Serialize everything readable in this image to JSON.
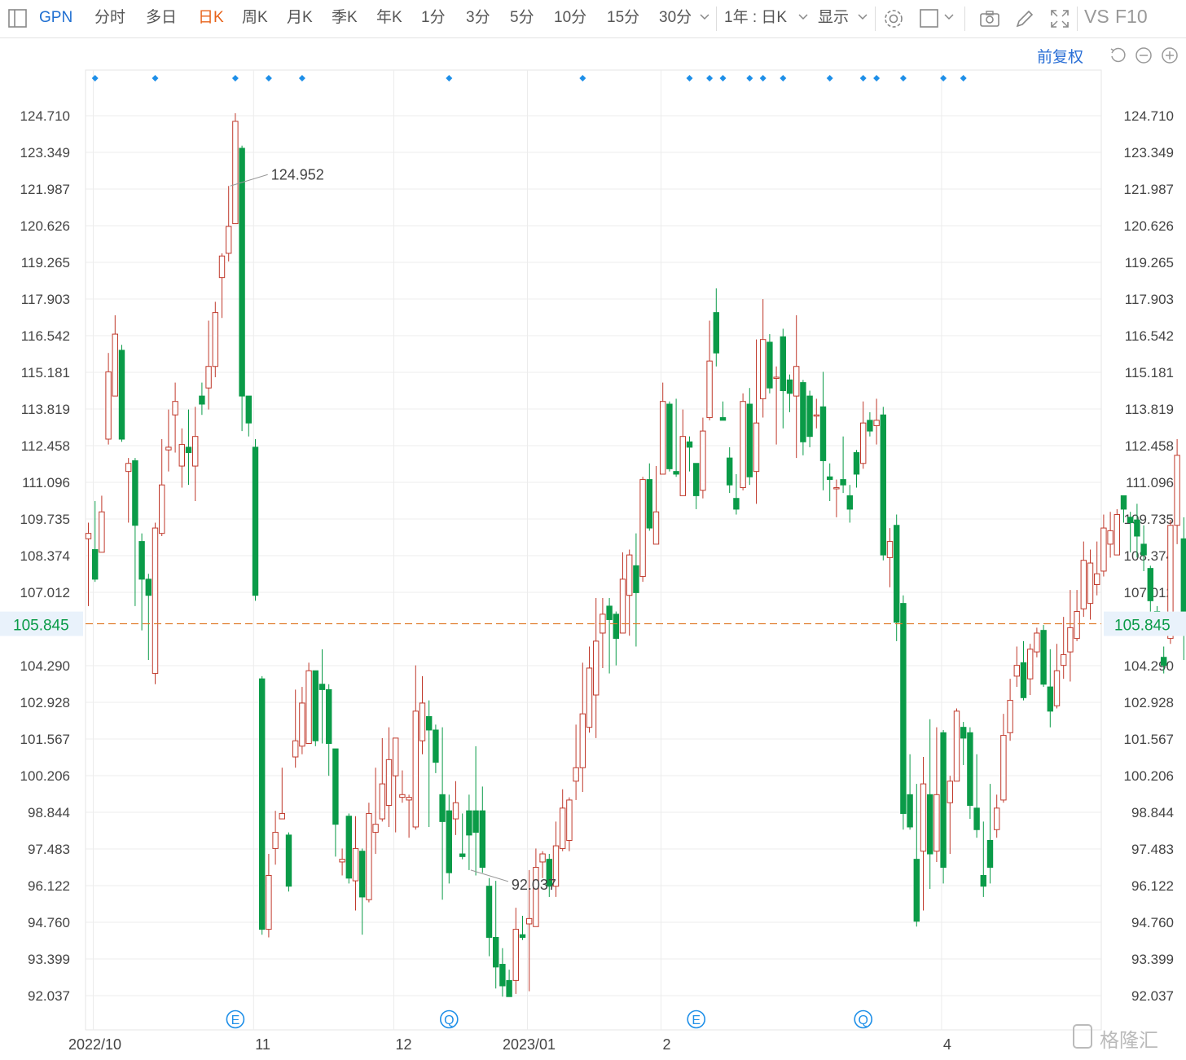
{
  "toolbar": {
    "symbol": "GPN",
    "tabs": [
      "分时",
      "多日",
      "日K",
      "周K",
      "月K",
      "季K",
      "年K",
      "1分",
      "3分",
      "5分",
      "10分",
      "15分",
      "30分"
    ],
    "active_tab": "日K",
    "range_select": "1年 : 日K",
    "display_select": "显示",
    "vs_label": "VS",
    "f10_label": "F10"
  },
  "fuquan_label": "前复权",
  "watermark": "格隆汇",
  "colors": {
    "up": "#c0392b",
    "down": "#0a9b48",
    "guide": "#e07b2a",
    "grid": "#ececec",
    "marker": "#1e8fe8"
  },
  "chart_data": {
    "type": "candlestick",
    "ylim": [
      91.2,
      126.0
    ],
    "y_ticks": [
      124.71,
      123.349,
      121.987,
      120.626,
      119.265,
      117.903,
      116.542,
      115.181,
      113.819,
      112.458,
      111.096,
      109.735,
      108.374,
      107.012,
      104.29,
      102.928,
      101.567,
      100.206,
      98.844,
      97.483,
      96.122,
      94.76,
      93.399,
      92.037
    ],
    "y_tick_labels": [
      "124.710",
      "123.349",
      "121.987",
      "120.626",
      "119.265",
      "117.903",
      "116.542",
      "115.181",
      "113.819",
      "112.458",
      "111.096",
      "109.735",
      "108.374",
      "107.012",
      "104.290",
      "102.928",
      "101.567",
      "100.206",
      "98.844",
      "97.483",
      "96.122",
      "94.760",
      "93.399",
      "92.037"
    ],
    "current_price": 105.845,
    "current_price_label": "105.845",
    "x_labels": [
      "2022/10",
      "11",
      "12",
      "2023/01",
      "2",
      "4"
    ],
    "x_label_index": [
      0,
      24,
      45,
      65,
      85,
      127
    ],
    "max_label": "124.952",
    "max_index": 21,
    "min_label": "92.037",
    "min_index": 57,
    "event_markers": [
      {
        "label": "E",
        "index": 22
      },
      {
        "label": "Q",
        "index": 54
      },
      {
        "label": "E",
        "index": 91
      },
      {
        "label": "Q",
        "index": 116
      }
    ],
    "dividend_marker_index": [
      1,
      10,
      22,
      27,
      32,
      54,
      74,
      90,
      93,
      95,
      99,
      101,
      104,
      111,
      116,
      118,
      122,
      128,
      131
    ],
    "candles": [
      [
        109.0,
        109.2,
        106.5,
        109.6
      ],
      [
        108.6,
        107.5,
        107.4,
        110.4
      ],
      [
        108.5,
        110.0,
        108.5,
        110.6
      ],
      [
        112.7,
        115.2,
        112.5,
        115.9
      ],
      [
        114.3,
        116.6,
        114.3,
        117.3
      ],
      [
        116.0,
        112.7,
        112.6,
        116.2
      ],
      [
        111.5,
        111.8,
        109.6,
        112.0
      ],
      [
        111.9,
        109.5,
        106.5,
        112.0
      ],
      [
        108.9,
        107.5,
        105.6,
        109.2
      ],
      [
        107.5,
        106.9,
        104.5,
        107.7
      ],
      [
        104.0,
        109.4,
        103.6,
        109.6
      ],
      [
        109.2,
        111.0,
        109.1,
        112.7
      ],
      [
        112.3,
        112.4,
        111.5,
        113.8
      ],
      [
        113.6,
        114.1,
        112.2,
        114.8
      ],
      [
        111.7,
        112.5,
        110.9,
        113.1
      ],
      [
        112.4,
        112.2,
        111.0,
        113.8
      ],
      [
        111.7,
        112.8,
        110.4,
        113.9
      ],
      [
        114.3,
        114.0,
        113.6,
        114.8
      ],
      [
        114.6,
        115.4,
        113.8,
        117.1
      ],
      [
        115.4,
        117.4,
        115.0,
        117.8
      ],
      [
        118.7,
        119.5,
        117.2,
        119.6
      ],
      [
        119.6,
        120.6,
        119.3,
        122.1
      ],
      [
        120.7,
        124.5,
        120.7,
        124.8
      ],
      [
        123.5,
        114.3,
        113.0,
        123.6
      ],
      [
        114.3,
        113.3,
        112.8,
        114.3
      ],
      [
        112.4,
        106.9,
        106.7,
        112.7
      ],
      [
        103.8,
        94.5,
        94.3,
        103.9
      ],
      [
        94.5,
        96.5,
        94.2,
        97.3
      ],
      [
        97.5,
        98.1,
        96.9,
        98.9
      ],
      [
        98.6,
        98.8,
        98.6,
        100.5
      ],
      [
        98.0,
        96.1,
        95.9,
        98.1
      ],
      [
        100.9,
        101.5,
        100.5,
        103.4
      ],
      [
        101.3,
        102.9,
        101.0,
        103.5
      ],
      [
        101.4,
        104.1,
        101.4,
        104.4
      ],
      [
        104.1,
        101.5,
        101.3,
        104.1
      ],
      [
        103.6,
        103.4,
        101.4,
        104.9
      ],
      [
        103.4,
        101.4,
        100.2,
        103.6
      ],
      [
        101.2,
        98.4,
        97.2,
        101.2
      ],
      [
        97.0,
        97.1,
        96.5,
        97.5
      ],
      [
        98.7,
        96.4,
        96.2,
        98.8
      ],
      [
        96.3,
        97.5,
        95.2,
        98.7
      ],
      [
        97.4,
        95.7,
        94.3,
        97.5
      ],
      [
        95.6,
        98.8,
        95.5,
        99.2
      ],
      [
        98.1,
        98.4,
        97.3,
        100.5
      ],
      [
        98.6,
        99.9,
        98.5,
        101.6
      ],
      [
        99.1,
        100.8,
        98.3,
        102.0
      ],
      [
        100.2,
        101.6,
        98.1,
        101.6
      ],
      [
        99.4,
        99.5,
        99.2,
        100.4
      ],
      [
        99.3,
        99.4,
        97.9,
        99.5
      ],
      [
        98.3,
        102.6,
        98.2,
        104.3
      ],
      [
        101.5,
        102.9,
        101.0,
        103.9
      ],
      [
        102.4,
        101.9,
        98.3,
        103.0
      ],
      [
        101.9,
        100.7,
        100.3,
        102.1
      ],
      [
        99.5,
        98.5,
        95.6,
        102.0
      ],
      [
        98.9,
        96.6,
        96.2,
        99.5
      ],
      [
        98.6,
        99.2,
        98.0,
        100.0
      ],
      [
        97.3,
        97.2,
        97.1,
        98.8
      ],
      [
        98.9,
        98.0,
        96.7,
        99.5
      ],
      [
        98.9,
        98.1,
        96.5,
        101.3
      ],
      [
        98.9,
        96.8,
        96.6,
        99.8
      ],
      [
        96.1,
        94.2,
        93.5,
        96.4
      ],
      [
        94.2,
        93.1,
        92.3,
        96.3
      ],
      [
        93.2,
        92.4,
        92.0,
        93.8
      ],
      [
        92.6,
        92.0,
        92.0,
        93.0
      ],
      [
        92.6,
        94.5,
        92.1,
        95.3
      ],
      [
        94.3,
        94.2,
        94.1,
        95.0
      ],
      [
        94.7,
        94.9,
        92.2,
        96.7
      ],
      [
        94.6,
        96.8,
        94.6,
        97.5
      ],
      [
        97.0,
        97.3,
        96.4,
        97.4
      ],
      [
        97.1,
        96.1,
        95.7,
        97.3
      ],
      [
        96.1,
        97.6,
        95.7,
        98.5
      ],
      [
        97.5,
        99.0,
        97.4,
        99.7
      ],
      [
        97.8,
        99.3,
        97.4,
        99.4
      ],
      [
        100.0,
        100.5,
        99.3,
        102.1
      ],
      [
        100.5,
        102.5,
        99.6,
        104.4
      ],
      [
        102.0,
        104.2,
        101.8,
        105.0
      ],
      [
        103.2,
        105.2,
        101.6,
        106.8
      ],
      [
        105.5,
        106.2,
        104.2,
        106.8
      ],
      [
        106.5,
        106.0,
        104.0,
        106.8
      ],
      [
        106.2,
        105.3,
        104.3,
        106.3
      ],
      [
        105.5,
        107.5,
        105.5,
        108.5
      ],
      [
        106.9,
        108.4,
        105.4,
        108.6
      ],
      [
        108.0,
        107.0,
        105.0,
        109.2
      ],
      [
        107.6,
        111.2,
        107.4,
        111.3
      ],
      [
        111.2,
        109.4,
        109.3,
        111.8
      ],
      [
        108.8,
        110.0,
        108.8,
        111.7
      ],
      [
        111.4,
        114.1,
        111.4,
        114.8
      ],
      [
        114.0,
        111.6,
        111.5,
        114.1
      ],
      [
        111.5,
        111.4,
        111.3,
        114.2
      ],
      [
        110.6,
        112.8,
        110.6,
        113.8
      ],
      [
        112.6,
        112.4,
        111.5,
        112.8
      ],
      [
        111.8,
        110.6,
        110.1,
        111.8
      ],
      [
        110.8,
        113.0,
        110.5,
        113.5
      ],
      [
        113.5,
        115.6,
        113.4,
        117.1
      ],
      [
        117.4,
        115.9,
        115.4,
        118.3
      ],
      [
        113.5,
        113.4,
        113.4,
        114.1
      ],
      [
        112.0,
        111.0,
        110.7,
        112.4
      ],
      [
        110.5,
        110.1,
        109.9,
        111.4
      ],
      [
        110.9,
        114.1,
        110.8,
        114.4
      ],
      [
        114.0,
        111.3,
        111.0,
        114.6
      ],
      [
        111.5,
        113.3,
        110.3,
        116.4
      ],
      [
        114.2,
        116.4,
        113.5,
        117.9
      ],
      [
        116.3,
        114.6,
        114.4,
        116.6
      ],
      [
        115.0,
        115.0,
        112.5,
        115.4
      ],
      [
        116.5,
        114.5,
        113.1,
        116.8
      ],
      [
        114.9,
        114.4,
        113.7,
        115.1
      ],
      [
        114.3,
        115.4,
        112.0,
        117.3
      ],
      [
        114.8,
        112.6,
        112.1,
        114.9
      ],
      [
        114.3,
        112.8,
        112.4,
        114.5
      ],
      [
        113.6,
        113.6,
        113.1,
        114.2
      ],
      [
        113.9,
        111.9,
        110.8,
        115.2
      ],
      [
        111.3,
        111.2,
        110.4,
        111.8
      ],
      [
        110.9,
        110.9,
        109.8,
        111.2
      ],
      [
        111.2,
        111.0,
        110.7,
        112.8
      ],
      [
        110.6,
        110.1,
        109.6,
        111.0
      ],
      [
        112.2,
        111.4,
        110.9,
        112.3
      ],
      [
        111.8,
        113.3,
        111.6,
        114.1
      ],
      [
        113.4,
        113.0,
        112.8,
        113.7
      ],
      [
        113.2,
        113.4,
        112.5,
        114.2
      ],
      [
        113.6,
        108.4,
        108.2,
        113.9
      ],
      [
        108.3,
        108.9,
        107.2,
        109.4
      ],
      [
        109.5,
        105.9,
        105.2,
        109.9
      ],
      [
        106.6,
        98.8,
        98.2,
        106.9
      ],
      [
        99.5,
        98.3,
        98.2,
        101.0
      ],
      [
        97.1,
        94.8,
        94.6,
        99.9
      ],
      [
        97.4,
        99.9,
        95.2,
        100.9
      ],
      [
        99.5,
        97.3,
        96.0,
        102.3
      ],
      [
        97.4,
        99.5,
        97.0,
        102.0
      ],
      [
        101.8,
        96.8,
        96.2,
        101.9
      ],
      [
        99.2,
        100.0,
        97.3,
        100.2
      ],
      [
        100.0,
        102.6,
        100.1,
        102.7
      ],
      [
        102.0,
        101.6,
        100.6,
        102.2
      ],
      [
        101.8,
        99.1,
        98.6,
        102.0
      ],
      [
        99.0,
        98.2,
        97.9,
        101.0
      ],
      [
        96.5,
        96.1,
        95.7,
        98.5
      ],
      [
        97.8,
        96.8,
        96.2,
        99.9
      ],
      [
        98.2,
        99.0,
        97.9,
        99.5
      ],
      [
        99.3,
        101.7,
        99.2,
        102.5
      ],
      [
        101.8,
        103.0,
        101.5,
        103.8
      ],
      [
        103.9,
        104.3,
        103.5,
        105.0
      ],
      [
        104.4,
        103.1,
        103.0,
        105.2
      ],
      [
        103.8,
        104.9,
        103.2,
        105.1
      ],
      [
        104.8,
        105.5,
        104.6,
        105.7
      ],
      [
        105.6,
        103.6,
        103.5,
        105.8
      ],
      [
        103.5,
        102.6,
        102.0,
        104.9
      ],
      [
        102.8,
        104.1,
        102.7,
        105.1
      ],
      [
        104.3,
        104.7,
        103.8,
        106.1
      ],
      [
        104.8,
        105.7,
        103.7,
        107.1
      ],
      [
        105.3,
        106.3,
        105.2,
        107.1
      ],
      [
        106.4,
        108.2,
        106.1,
        108.9
      ],
      [
        106.6,
        108.1,
        106.0,
        108.6
      ],
      [
        107.3,
        107.7,
        106.9,
        108.9
      ],
      [
        107.8,
        109.4,
        107.6,
        109.9
      ],
      [
        108.8,
        109.3,
        108.3,
        110.0
      ],
      [
        108.4,
        109.9,
        108.4,
        110.1
      ],
      [
        110.6,
        110.1,
        109.6,
        110.6
      ],
      [
        109.8,
        109.6,
        108.5,
        110.0
      ],
      [
        109.7,
        109.1,
        108.3,
        110.3
      ],
      [
        108.8,
        108.4,
        107.8,
        109.5
      ],
      [
        107.9,
        106.7,
        106.0,
        108.0
      ],
      [
        106.3,
        105.8,
        105.5,
        106.5
      ],
      [
        104.6,
        104.3,
        104.0,
        105.0
      ],
      [
        105.3,
        109.5,
        105.1,
        109.7
      ],
      [
        109.5,
        112.1,
        108.8,
        112.7
      ],
      [
        109.0,
        106.2,
        104.5,
        109.8
      ]
    ]
  }
}
